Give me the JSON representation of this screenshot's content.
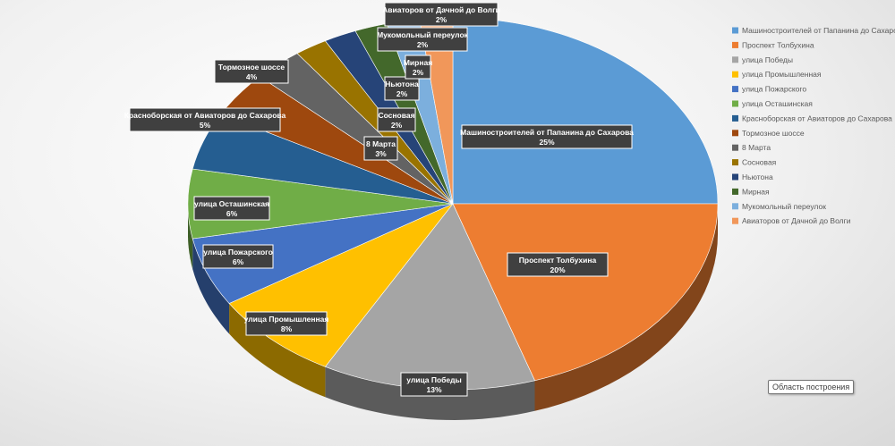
{
  "chart_data": {
    "type": "pie",
    "categories": [
      "Машиностроителей от Папанина до Сахарова",
      "Проспект Толбухина",
      "улица Победы",
      "улица Промышленная",
      "улица Пожарского",
      "улица Осташинская",
      "Красноборская от Авиаторов до Сахарова",
      "Тормозное шоссе",
      "8 Марта",
      "Сосновая",
      "Ньютона",
      "Мирная",
      "Мукомольный переулок",
      "Авиаторов от Дачной до Волги"
    ],
    "values": [
      25,
      20,
      13,
      8,
      6,
      6,
      5,
      4,
      3,
      2,
      2,
      2,
      2,
      2
    ],
    "value_labels": [
      "25%",
      "20%",
      "13%",
      "8%",
      "6%",
      "6%",
      "5%",
      "4%",
      "3%",
      "2%",
      "2%",
      "2%",
      "2%",
      "2%"
    ],
    "colors": [
      "#5b9bd5",
      "#ed7d31",
      "#a5a5a5",
      "#ffc000",
      "#4472c4",
      "#70ad47",
      "#255e91",
      "#9e480e",
      "#636363",
      "#997300",
      "#264478",
      "#43682b",
      "#7cafdd",
      "#f1975a"
    ],
    "legend_position": "right",
    "style": "3d"
  },
  "tooltip": {
    "text": "Область построения"
  }
}
